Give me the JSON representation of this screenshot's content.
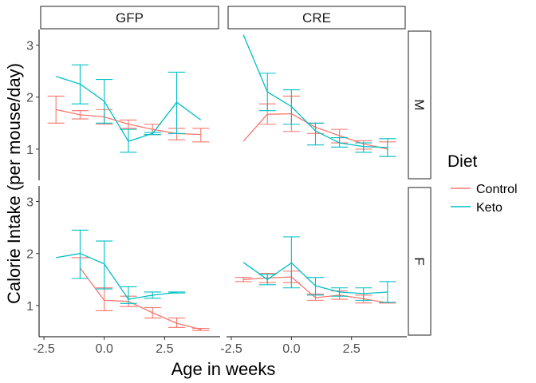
{
  "chart_data": {
    "type": "line",
    "xlabel": "Age in weeks",
    "ylabel": "Calorie Intake (per mouse/day)",
    "xlim": [
      -2.7,
      4.8
    ],
    "ylim": [
      0.4,
      3.3
    ],
    "xticks": [
      -2.5,
      0.0,
      2.5
    ],
    "xtick_labels": [
      "-2.5",
      "0.0",
      "2.5"
    ],
    "yticks": [
      1,
      2,
      3
    ],
    "ytick_labels": [
      "1",
      "2",
      "3"
    ],
    "grid": false,
    "legend": {
      "title": "Diet",
      "placement": "right",
      "entries": [
        {
          "label": "Control",
          "color": "#F8766D"
        },
        {
          "label": "Keto",
          "color": "#00BFC4"
        }
      ]
    },
    "column_strips": [
      "GFP",
      "CRE"
    ],
    "row_strips": [
      "M",
      "F"
    ],
    "panels": [
      {
        "col": "GFP",
        "row": "M",
        "series": [
          {
            "name": "Control",
            "color": "#F8766D",
            "x": [
              -2,
              -1,
              0,
              1,
              2,
              3,
              4
            ],
            "y": [
              1.76,
              1.66,
              1.62,
              1.48,
              1.38,
              1.3,
              1.28
            ],
            "ymin": [
              1.5,
              1.58,
              1.48,
              1.4,
              1.28,
              1.18,
              1.14
            ],
            "ymax": [
              2.02,
              1.74,
              1.76,
              1.56,
              1.48,
              1.4,
              1.4
            ]
          },
          {
            "name": "Keto",
            "color": "#00BFC4",
            "x": [
              -2,
              -1,
              0,
              1,
              2,
              3,
              4
            ],
            "y": [
              2.4,
              2.25,
              1.92,
              1.15,
              1.3,
              1.9,
              1.56
            ],
            "ymin": [
              null,
              1.87,
              1.5,
              0.94,
              1.28,
              1.3,
              null
            ],
            "ymax": [
              null,
              2.62,
              2.34,
              1.38,
              1.32,
              2.48,
              null
            ]
          }
        ]
      },
      {
        "col": "CRE",
        "row": "M",
        "series": [
          {
            "name": "Control",
            "color": "#F8766D",
            "x": [
              -2,
              -1,
              0,
              1,
              2,
              3,
              4
            ],
            "y": [
              1.15,
              1.67,
              1.68,
              1.42,
              1.26,
              1.1,
              1.0
            ],
            "ymin": [
              null,
              1.48,
              1.34,
              1.3,
              1.12,
              1.0,
              0.86
            ],
            "ymax": [
              null,
              1.87,
              2.02,
              1.5,
              1.38,
              1.16,
              1.14
            ]
          },
          {
            "name": "Keto",
            "color": "#00BFC4",
            "x": [
              -2,
              -1,
              0,
              1,
              2,
              3,
              4
            ],
            "y": [
              3.2,
              2.1,
              1.82,
              1.35,
              1.12,
              1.05,
              1.03
            ],
            "ymin": [
              null,
              1.74,
              1.48,
              1.08,
              1.04,
              0.94,
              0.86
            ],
            "ymax": [
              null,
              2.46,
              2.14,
              1.5,
              1.22,
              1.12,
              1.2
            ]
          }
        ]
      },
      {
        "col": "GFP",
        "row": "F",
        "series": [
          {
            "name": "Control",
            "color": "#F8766D",
            "x": [
              -1,
              0,
              1,
              2,
              3,
              4
            ],
            "y": [
              1.72,
              1.1,
              1.08,
              0.86,
              0.66,
              0.54
            ],
            "ymin": [
              1.52,
              0.9,
              0.98,
              0.76,
              0.58,
              0.52
            ],
            "ymax": [
              1.92,
              1.34,
              1.18,
              0.96,
              0.76,
              0.56
            ]
          },
          {
            "name": "Keto",
            "color": "#00BFC4",
            "x": [
              -2,
              -1,
              0,
              1,
              2,
              3
            ],
            "y": [
              1.92,
              2.0,
              1.8,
              1.12,
              1.2,
              1.25
            ],
            "ymin": [
              null,
              1.52,
              1.32,
              1.04,
              1.14,
              1.24
            ],
            "ymax": [
              null,
              2.45,
              2.24,
              1.36,
              1.26,
              1.26
            ]
          }
        ]
      },
      {
        "col": "CRE",
        "row": "F",
        "series": [
          {
            "name": "Control",
            "color": "#F8766D",
            "x": [
              -2,
              -1,
              0,
              1,
              2,
              3,
              4
            ],
            "y": [
              1.5,
              1.53,
              1.55,
              1.15,
              1.2,
              1.13,
              1.05
            ],
            "ymin": [
              1.46,
              1.44,
              1.44,
              1.1,
              1.12,
              1.05,
              1.05
            ],
            "ymax": [
              1.54,
              1.62,
              1.66,
              1.22,
              1.28,
              1.2,
              1.05
            ]
          },
          {
            "name": "Keto",
            "color": "#00BFC4",
            "x": [
              -2,
              -1,
              0,
              1,
              2,
              3,
              4
            ],
            "y": [
              1.83,
              1.5,
              1.82,
              1.38,
              1.26,
              1.23,
              1.26
            ],
            "ymin": [
              null,
              1.4,
              1.34,
              1.2,
              1.18,
              1.1,
              1.06
            ],
            "ymax": [
              null,
              1.6,
              2.32,
              1.54,
              1.34,
              1.34,
              1.46
            ]
          }
        ]
      }
    ]
  }
}
